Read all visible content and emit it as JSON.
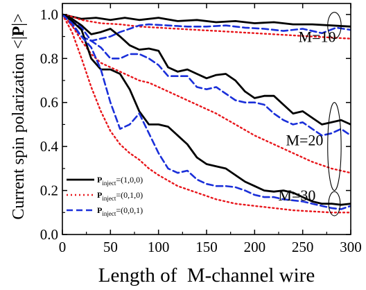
{
  "chart_data": {
    "type": "line",
    "title": "",
    "ylabel_prefix": "Current spin polarization <|",
    "ylabel_bold": "P",
    "ylabel_suffix": "|>",
    "xlabel": "Length of  M-channel wire",
    "xlim": [
      0,
      300
    ],
    "ylim": [
      0.0,
      1.05
    ],
    "xticks": [
      0,
      50,
      100,
      150,
      200,
      250,
      300
    ],
    "yticks": [
      0.0,
      0.2,
      0.4,
      0.6,
      0.8,
      1.0
    ],
    "grid": false,
    "legend_position": "bottom-left",
    "legend": [
      {
        "symbol": "P",
        "sub": "inject",
        "value": "=(1,0,0)",
        "color": "#000000",
        "dash": "solid"
      },
      {
        "symbol": "P",
        "sub": "inject",
        "value": "=(0,1,0)",
        "color": "#e8161b",
        "dash": "dot"
      },
      {
        "symbol": "P",
        "sub": "inject",
        "value": "=(0,0,1)",
        "color": "#1a2fd9",
        "dash": "dash"
      }
    ],
    "annotations": [
      {
        "text": "M=10",
        "x": 265,
        "y": 0.875
      },
      {
        "text": "M=20",
        "x": 252,
        "y": 0.405
      },
      {
        "text": "M=30",
        "x": 244,
        "y": 0.155
      }
    ],
    "ellipses": [
      {
        "cx": 283,
        "cy": 0.95,
        "rx": 7,
        "ry": 0.06
      },
      {
        "cx": 283,
        "cy": 0.4,
        "rx": 7,
        "ry": 0.2
      },
      {
        "cx": 283,
        "cy": 0.14,
        "rx": 6,
        "ry": 0.055
      }
    ],
    "series": [
      {
        "group": "M=10",
        "color": "#000000",
        "dash": "solid",
        "x": [
          0,
          10,
          20,
          35,
          50,
          65,
          80,
          100,
          120,
          140,
          160,
          180,
          200,
          220,
          240,
          260,
          280,
          300
        ],
        "y": [
          1.0,
          0.99,
          0.98,
          0.985,
          0.975,
          0.985,
          0.975,
          0.985,
          0.97,
          0.975,
          0.965,
          0.97,
          0.96,
          0.965,
          0.955,
          0.955,
          0.95,
          0.945
        ]
      },
      {
        "group": "M=10",
        "color": "#e8161b",
        "dash": "dot",
        "x": [
          0,
          10,
          20,
          40,
          60,
          80,
          100,
          120,
          140,
          160,
          180,
          200,
          220,
          240,
          260,
          280,
          300
        ],
        "y": [
          1.0,
          0.99,
          0.975,
          0.96,
          0.955,
          0.945,
          0.94,
          0.935,
          0.93,
          0.925,
          0.92,
          0.915,
          0.91,
          0.905,
          0.9,
          0.895,
          0.89
        ]
      },
      {
        "group": "M=10",
        "color": "#1a2fd9",
        "dash": "dash",
        "x": [
          0,
          10,
          20,
          30,
          40,
          50,
          60,
          70,
          80,
          90,
          110,
          130,
          150,
          170,
          190,
          210,
          230,
          250,
          270,
          285,
          300
        ],
        "y": [
          1.0,
          0.95,
          0.9,
          0.88,
          0.89,
          0.9,
          0.92,
          0.935,
          0.95,
          0.955,
          0.95,
          0.945,
          0.945,
          0.95,
          0.94,
          0.935,
          0.925,
          0.935,
          0.915,
          0.94,
          0.93
        ]
      },
      {
        "group": "M=20",
        "color": "#000000",
        "dash": "solid",
        "x": [
          0,
          10,
          20,
          30,
          40,
          50,
          60,
          70,
          80,
          90,
          100,
          110,
          120,
          130,
          140,
          150,
          160,
          170,
          180,
          190,
          200,
          210,
          220,
          230,
          240,
          250,
          260,
          270,
          280,
          290,
          300
        ],
        "y": [
          1.0,
          0.98,
          0.95,
          0.91,
          0.92,
          0.935,
          0.9,
          0.86,
          0.84,
          0.845,
          0.835,
          0.76,
          0.74,
          0.75,
          0.73,
          0.71,
          0.725,
          0.73,
          0.7,
          0.65,
          0.62,
          0.63,
          0.63,
          0.59,
          0.55,
          0.56,
          0.53,
          0.5,
          0.51,
          0.52,
          0.5
        ]
      },
      {
        "group": "M=20",
        "color": "#e8161b",
        "dash": "dot",
        "x": [
          0,
          10,
          20,
          30,
          40,
          50,
          60,
          70,
          80,
          90,
          100,
          120,
          140,
          160,
          180,
          200,
          220,
          240,
          260,
          280,
          300
        ],
        "y": [
          1.0,
          0.95,
          0.88,
          0.82,
          0.78,
          0.76,
          0.74,
          0.72,
          0.7,
          0.69,
          0.67,
          0.63,
          0.59,
          0.55,
          0.5,
          0.45,
          0.41,
          0.37,
          0.33,
          0.3,
          0.28
        ]
      },
      {
        "group": "M=20",
        "color": "#1a2fd9",
        "dash": "dash",
        "x": [
          0,
          10,
          20,
          30,
          40,
          50,
          60,
          70,
          80,
          90,
          100,
          110,
          120,
          130,
          140,
          150,
          160,
          170,
          180,
          190,
          200,
          210,
          220,
          230,
          240,
          250,
          260,
          270,
          280,
          290,
          300
        ],
        "y": [
          1.0,
          0.97,
          0.94,
          0.88,
          0.85,
          0.8,
          0.8,
          0.82,
          0.82,
          0.8,
          0.77,
          0.72,
          0.72,
          0.72,
          0.67,
          0.66,
          0.67,
          0.64,
          0.61,
          0.6,
          0.6,
          0.59,
          0.55,
          0.52,
          0.5,
          0.51,
          0.48,
          0.45,
          0.46,
          0.48,
          0.45
        ]
      },
      {
        "group": "M=30",
        "color": "#000000",
        "dash": "solid",
        "x": [
          0,
          10,
          20,
          30,
          40,
          50,
          60,
          70,
          80,
          90,
          100,
          110,
          120,
          130,
          140,
          150,
          160,
          170,
          180,
          190,
          200,
          210,
          220,
          230,
          240,
          250,
          260,
          270,
          280,
          290,
          300
        ],
        "y": [
          1.0,
          0.97,
          0.93,
          0.8,
          0.75,
          0.75,
          0.73,
          0.66,
          0.56,
          0.5,
          0.5,
          0.49,
          0.45,
          0.41,
          0.35,
          0.32,
          0.31,
          0.3,
          0.27,
          0.24,
          0.22,
          0.2,
          0.195,
          0.2,
          0.19,
          0.17,
          0.15,
          0.14,
          0.14,
          0.135,
          0.14
        ]
      },
      {
        "group": "M=30",
        "color": "#e8161b",
        "dash": "dot",
        "x": [
          0,
          10,
          20,
          30,
          40,
          50,
          60,
          70,
          80,
          90,
          100,
          120,
          140,
          160,
          180,
          200,
          220,
          240,
          260,
          280,
          300
        ],
        "y": [
          1.0,
          0.92,
          0.8,
          0.67,
          0.56,
          0.47,
          0.41,
          0.37,
          0.34,
          0.3,
          0.27,
          0.22,
          0.19,
          0.16,
          0.14,
          0.13,
          0.12,
          0.11,
          0.105,
          0.1,
          0.1
        ]
      },
      {
        "group": "M=30",
        "color": "#1a2fd9",
        "dash": "dash",
        "x": [
          0,
          10,
          20,
          30,
          40,
          50,
          60,
          70,
          80,
          90,
          100,
          110,
          120,
          130,
          140,
          150,
          160,
          170,
          180,
          190,
          200,
          210,
          220,
          230,
          240,
          250,
          260,
          270,
          280,
          290,
          300
        ],
        "y": [
          1.0,
          0.96,
          0.9,
          0.85,
          0.75,
          0.6,
          0.48,
          0.5,
          0.55,
          0.46,
          0.37,
          0.3,
          0.28,
          0.29,
          0.25,
          0.23,
          0.22,
          0.22,
          0.215,
          0.2,
          0.18,
          0.17,
          0.17,
          0.16,
          0.155,
          0.15,
          0.14,
          0.13,
          0.12,
          0.115,
          0.13
        ]
      }
    ]
  }
}
